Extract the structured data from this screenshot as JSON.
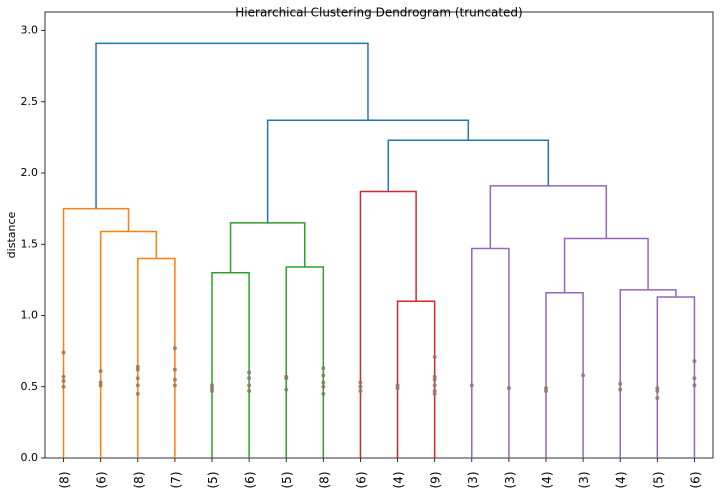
{
  "chart_data": {
    "type": "dendrogram",
    "title": "Hierarchical Clustering Dendrogram (truncated)",
    "ylabel": "distance",
    "xlim": [
      0,
      180
    ],
    "ylim": [
      0,
      3.13
    ],
    "yticks": [
      {
        "value": 0,
        "label": "0.0"
      },
      0.5,
      {
        "value": 1,
        "label": "1.0"
      },
      1.5,
      {
        "value": 2,
        "label": "2.0"
      },
      2.5,
      {
        "value": 3,
        "label": "3.0"
      }
    ],
    "leaves": [
      "(8)",
      "(6)",
      "(8)",
      "(7)",
      "(5)",
      "(6)",
      "(5)",
      "(8)",
      "(6)",
      "(4)",
      "(9)",
      "(3)",
      "(3)",
      "(4)",
      "(3)",
      "(4)",
      "(5)",
      "(6)"
    ],
    "leaf_x": [
      5,
      15,
      25,
      35,
      45,
      55,
      65,
      75,
      85,
      95,
      105,
      115,
      125,
      135,
      145,
      155,
      165,
      175
    ],
    "contracted_color": "#8b7462",
    "contracted": [
      [
        0.74,
        0.57,
        0.54,
        0.5
      ],
      [
        0.61,
        0.53,
        0.51
      ],
      [
        0.64,
        0.62,
        0.56,
        0.51,
        0.45
      ],
      [
        0.77,
        0.62,
        0.55,
        0.51
      ],
      [
        0.51,
        0.49,
        0.47
      ],
      [
        0.6,
        0.56,
        0.51,
        0.47
      ],
      [
        0.57,
        0.56,
        0.48
      ],
      [
        0.63,
        0.58,
        0.53,
        0.5,
        0.45
      ],
      [
        0.53,
        0.5,
        0.47
      ],
      [
        0.51,
        0.49
      ],
      [
        0.71,
        0.57,
        0.55,
        0.51,
        0.47,
        0.45
      ],
      [
        0.51
      ],
      [
        0.49
      ],
      [
        0.49,
        0.47
      ],
      [
        0.58
      ],
      [
        0.52,
        0.48
      ],
      [
        0.49,
        0.47,
        0.42
      ],
      [
        0.68,
        0.56,
        0.51
      ]
    ],
    "links": [
      {
        "color": "#ff7f0e",
        "icoord": [
          25,
          25,
          35,
          35
        ],
        "dcoord": [
          0,
          1.4,
          1.4,
          0
        ]
      },
      {
        "color": "#ff7f0e",
        "icoord": [
          15,
          15,
          30,
          30
        ],
        "dcoord": [
          0,
          1.59,
          1.59,
          1.4
        ]
      },
      {
        "color": "#ff7f0e",
        "icoord": [
          5,
          5,
          22.5,
          22.5
        ],
        "dcoord": [
          0,
          1.75,
          1.75,
          1.59
        ]
      },
      {
        "color": "#2ca02c",
        "icoord": [
          45,
          45,
          55,
          55
        ],
        "dcoord": [
          0,
          1.3,
          1.3,
          0
        ]
      },
      {
        "color": "#2ca02c",
        "icoord": [
          65,
          65,
          75,
          75
        ],
        "dcoord": [
          0,
          1.34,
          1.34,
          0
        ]
      },
      {
        "color": "#2ca02c",
        "icoord": [
          50,
          50,
          70,
          70
        ],
        "dcoord": [
          1.3,
          1.65,
          1.65,
          1.34
        ]
      },
      {
        "color": "#d62728",
        "icoord": [
          95,
          95,
          105,
          105
        ],
        "dcoord": [
          0,
          1.1,
          1.1,
          0
        ]
      },
      {
        "color": "#d62728",
        "icoord": [
          85,
          85,
          100,
          100
        ],
        "dcoord": [
          0,
          1.87,
          1.87,
          1.1
        ]
      },
      {
        "color": "#9467bd",
        "icoord": [
          115,
          115,
          125,
          125
        ],
        "dcoord": [
          0,
          1.47,
          1.47,
          0
        ]
      },
      {
        "color": "#9467bd",
        "icoord": [
          135,
          135,
          145,
          145
        ],
        "dcoord": [
          0,
          1.16,
          1.16,
          0
        ]
      },
      {
        "color": "#9467bd",
        "icoord": [
          165,
          165,
          175,
          175
        ],
        "dcoord": [
          0,
          1.13,
          1.13,
          0
        ]
      },
      {
        "color": "#9467bd",
        "icoord": [
          155,
          155,
          170,
          170
        ],
        "dcoord": [
          0,
          1.18,
          1.18,
          1.13
        ]
      },
      {
        "color": "#9467bd",
        "icoord": [
          140,
          140,
          162.5,
          162.5
        ],
        "dcoord": [
          1.16,
          1.54,
          1.54,
          1.18
        ]
      },
      {
        "color": "#9467bd",
        "icoord": [
          120,
          120,
          151.25,
          151.25
        ],
        "dcoord": [
          1.47,
          1.91,
          1.91,
          1.54
        ]
      },
      {
        "color": "#1f77b4",
        "icoord": [
          92.5,
          92.5,
          135.625,
          135.625
        ],
        "dcoord": [
          1.87,
          2.23,
          2.23,
          1.91
        ]
      },
      {
        "color": "#1f77b4",
        "icoord": [
          60,
          60,
          114.0625,
          114.0625
        ],
        "dcoord": [
          1.65,
          2.37,
          2.37,
          2.23
        ]
      },
      {
        "color": "#1f77b4",
        "icoord": [
          13.75,
          13.75,
          87.03125,
          87.03125
        ],
        "dcoord": [
          1.75,
          2.91,
          2.91,
          2.37
        ]
      }
    ]
  }
}
